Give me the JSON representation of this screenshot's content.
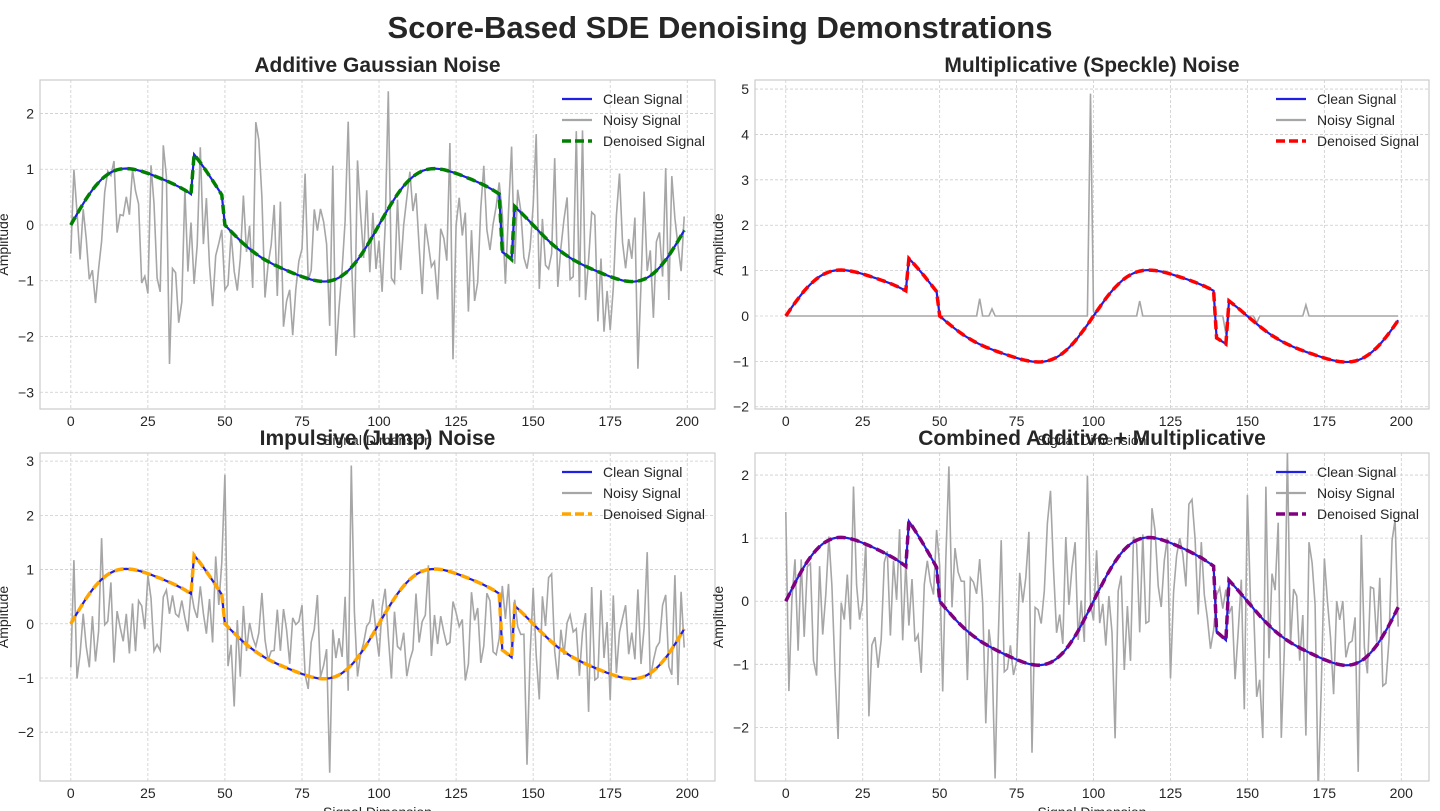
{
  "suptitle": "Score-Based SDE Denoising Demonstrations",
  "chart_data": [
    {
      "type": "line",
      "title": "Additive Gaussian Noise",
      "xlabel": "Signal Dimension",
      "ylabel": "Amplitude",
      "xlim": [
        -10,
        209
      ],
      "ylim": [
        -3.3,
        2.6
      ],
      "xticks": [
        0,
        25,
        50,
        75,
        100,
        125,
        150,
        175,
        200
      ],
      "yticks": [
        2,
        1,
        0,
        -1,
        -2,
        -3
      ],
      "grid": true,
      "legend_position": "top-right",
      "noise_kind": "gaussian",
      "denoised_color": "#008000",
      "series": [
        {
          "name": "Clean Signal",
          "color": "#1f1fe6",
          "style": "solid"
        },
        {
          "name": "Noisy Signal",
          "color": "#a6a6a6",
          "style": "solid"
        },
        {
          "name": "Denoised Signal",
          "color": "#008000",
          "style": "dashed"
        }
      ]
    },
    {
      "type": "line",
      "title": "Multiplicative (Speckle) Noise",
      "xlabel": "Signal Dimension",
      "ylabel": "Amplitude",
      "xlim": [
        -10,
        209
      ],
      "ylim": [
        -2.05,
        5.2
      ],
      "xticks": [
        0,
        25,
        50,
        75,
        100,
        125,
        150,
        175,
        200
      ],
      "yticks": [
        5,
        4,
        3,
        2,
        1,
        0,
        -1,
        -2
      ],
      "grid": true,
      "legend_position": "top-right",
      "noise_kind": "speckle",
      "denoised_color": "#ff0000",
      "series": [
        {
          "name": "Clean Signal",
          "color": "#1f1fe6",
          "style": "solid"
        },
        {
          "name": "Noisy Signal",
          "color": "#a6a6a6",
          "style": "solid"
        },
        {
          "name": "Denoised Signal",
          "color": "#ff0000",
          "style": "dashed"
        }
      ]
    },
    {
      "type": "line",
      "title": "Impulsive (Jump) Noise",
      "xlabel": "Signal Dimension",
      "ylabel": "Amplitude",
      "xlim": [
        -10,
        209
      ],
      "ylim": [
        -2.9,
        3.15
      ],
      "xticks": [
        0,
        25,
        50,
        75,
        100,
        125,
        150,
        175,
        200
      ],
      "yticks": [
        3,
        2,
        1,
        0,
        -1,
        -2
      ],
      "grid": true,
      "legend_position": "top-right",
      "noise_kind": "impulsive",
      "denoised_color": "#ffa500",
      "series": [
        {
          "name": "Clean Signal",
          "color": "#1f1fe6",
          "style": "solid"
        },
        {
          "name": "Noisy Signal",
          "color": "#a6a6a6",
          "style": "solid"
        },
        {
          "name": "Denoised Signal",
          "color": "#ffa500",
          "style": "dashed"
        }
      ]
    },
    {
      "type": "line",
      "title": "Combined Additive + Multiplicative",
      "xlabel": "Signal Dimension",
      "ylabel": "Amplitude",
      "xlim": [
        -10,
        209
      ],
      "ylim": [
        -2.85,
        2.35
      ],
      "xticks": [
        0,
        25,
        50,
        75,
        100,
        125,
        150,
        175,
        200
      ],
      "yticks": [
        2,
        1,
        0,
        -1,
        -2
      ],
      "grid": true,
      "legend_position": "top-right",
      "noise_kind": "combined",
      "denoised_color": "#800080",
      "series": [
        {
          "name": "Clean Signal",
          "color": "#1f1fe6",
          "style": "solid"
        },
        {
          "name": "Noisy Signal",
          "color": "#a6a6a6",
          "style": "solid"
        },
        {
          "name": "Denoised Signal",
          "color": "#800080",
          "style": "dashed"
        }
      ]
    }
  ]
}
